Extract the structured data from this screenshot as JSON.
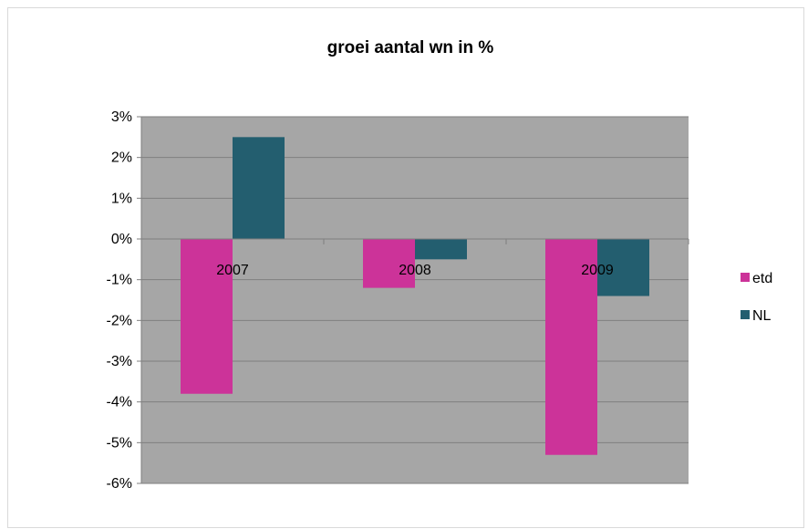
{
  "chart_data": {
    "type": "bar",
    "title": "groei aantal wn in %",
    "categories": [
      "2007",
      "2008",
      "2009"
    ],
    "series": [
      {
        "name": "etd",
        "values": [
          -3.8,
          -1.2,
          -5.3
        ],
        "color": "#cc3399"
      },
      {
        "name": "NL",
        "values": [
          2.5,
          -0.5,
          -1.4
        ],
        "color": "#235e6f"
      }
    ],
    "ylim": [
      -6,
      3
    ],
    "y_ticks": [
      3,
      2,
      1,
      0,
      -1,
      -2,
      -3,
      -4,
      -5,
      -6
    ],
    "y_tick_labels": [
      "3%",
      "2%",
      "1%",
      "0%",
      "-1%",
      "-2%",
      "-3%",
      "-4%",
      "-5%",
      "-6%"
    ],
    "plot_background": "#a6a6a6",
    "gridlines": true,
    "legend_position": "right"
  }
}
